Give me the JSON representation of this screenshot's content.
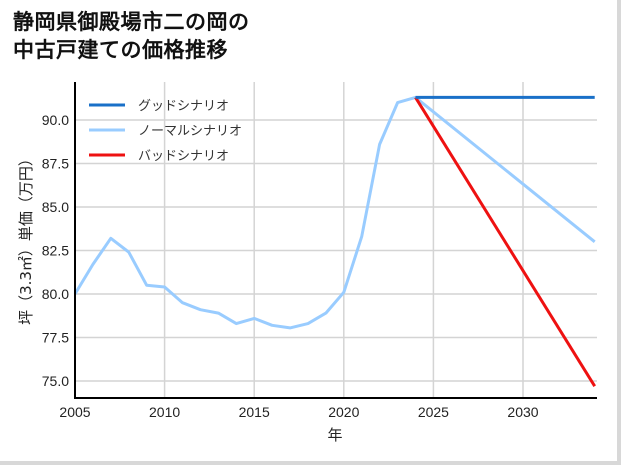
{
  "title_line1": "静岡県御殿場市二の岡の",
  "title_line2": "中古戸建ての価格推移",
  "chart_data": {
    "type": "line",
    "title": "静岡県御殿場市二の岡の中古戸建ての価格推移",
    "xlabel": "年",
    "ylabel": "坪（3.3㎡）単価（万円）",
    "xlim": [
      2005,
      2034
    ],
    "ylim": [
      74.0,
      92.3
    ],
    "x_ticks": [
      "2005",
      "2010",
      "2015",
      "2020",
      "2025",
      "2030"
    ],
    "y_ticks": [
      "75.0",
      "77.5",
      "80.0",
      "82.5",
      "85.0",
      "87.5",
      "90.0"
    ],
    "grid": true,
    "legend_position": "upper left",
    "series": [
      {
        "name": "グッドシナリオ",
        "color": "#1a70c8",
        "x": [
          2024,
          2034
        ],
        "values": [
          91.3,
          91.3
        ]
      },
      {
        "name": "ノーマルシナリオ",
        "color": "#99ccff",
        "x": [
          2005,
          2006,
          2007,
          2008,
          2009,
          2010,
          2011,
          2012,
          2013,
          2014,
          2015,
          2016,
          2017,
          2018,
          2019,
          2020,
          2021,
          2022,
          2023,
          2024,
          2034
        ],
        "values": [
          80.0,
          81.7,
          83.2,
          82.4,
          80.5,
          80.4,
          79.5,
          79.1,
          78.9,
          78.3,
          78.6,
          78.2,
          78.05,
          78.3,
          78.9,
          80.1,
          83.3,
          88.6,
          91.0,
          91.3,
          83.0
        ]
      },
      {
        "name": "バッドシナリオ",
        "color": "#ee1111",
        "x": [
          2024,
          2034
        ],
        "values": [
          91.3,
          74.7
        ]
      }
    ]
  }
}
